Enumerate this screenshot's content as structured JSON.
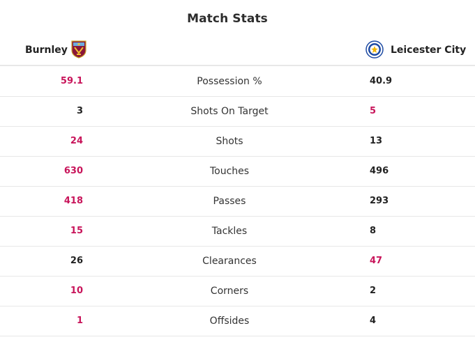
{
  "title": "Match Stats",
  "home_team": {
    "name": "Burnley",
    "crest_icon": "burnley-crest-icon"
  },
  "away_team": {
    "name": "Leicester City",
    "crest_icon": "leicester-crest-icon"
  },
  "colors": {
    "leader_highlight": "#c8145a",
    "normal_text": "#222222",
    "divider": "#e7e7e7"
  },
  "stats": [
    {
      "label": "Possession %",
      "home": "59.1",
      "away": "40.9",
      "leader": "home"
    },
    {
      "label": "Shots On Target",
      "home": "3",
      "away": "5",
      "leader": "away"
    },
    {
      "label": "Shots",
      "home": "24",
      "away": "13",
      "leader": "home"
    },
    {
      "label": "Touches",
      "home": "630",
      "away": "496",
      "leader": "home"
    },
    {
      "label": "Passes",
      "home": "418",
      "away": "293",
      "leader": "home"
    },
    {
      "label": "Tackles",
      "home": "15",
      "away": "8",
      "leader": "home"
    },
    {
      "label": "Clearances",
      "home": "26",
      "away": "47",
      "leader": "away"
    },
    {
      "label": "Corners",
      "home": "10",
      "away": "2",
      "leader": "home"
    },
    {
      "label": "Offsides",
      "home": "1",
      "away": "4",
      "leader": "away-none"
    }
  ]
}
